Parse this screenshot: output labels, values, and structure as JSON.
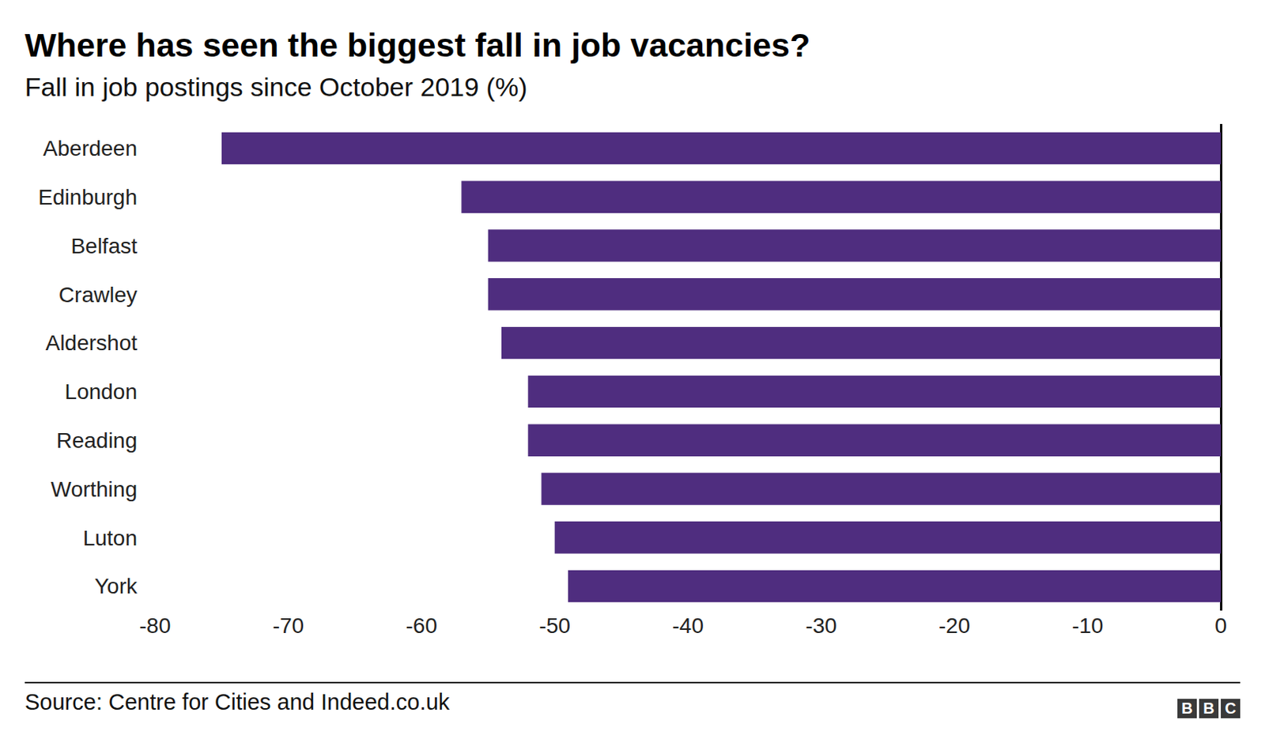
{
  "chart_data": {
    "type": "bar",
    "orientation": "horizontal",
    "title": "Where has seen the biggest fall in job vacancies?",
    "subtitle": "Fall in job postings since October 2019 (%)",
    "categories": [
      "Aberdeen",
      "Edinburgh",
      "Belfast",
      "Crawley",
      "Aldershot",
      "London",
      "Reading",
      "Worthing",
      "Luton",
      "York"
    ],
    "values": [
      -75,
      -57,
      -55,
      -55,
      -54,
      -52,
      -52,
      -51,
      -50,
      -49
    ],
    "color": "#4f2d7f",
    "xlim": [
      -80,
      0
    ],
    "xticks": [
      -80,
      -70,
      -60,
      -50,
      -40,
      -30,
      -20,
      -10,
      0
    ],
    "grid": false,
    "source": "Source: Centre for Cities and Indeed.co.uk",
    "credit": "BBC"
  }
}
